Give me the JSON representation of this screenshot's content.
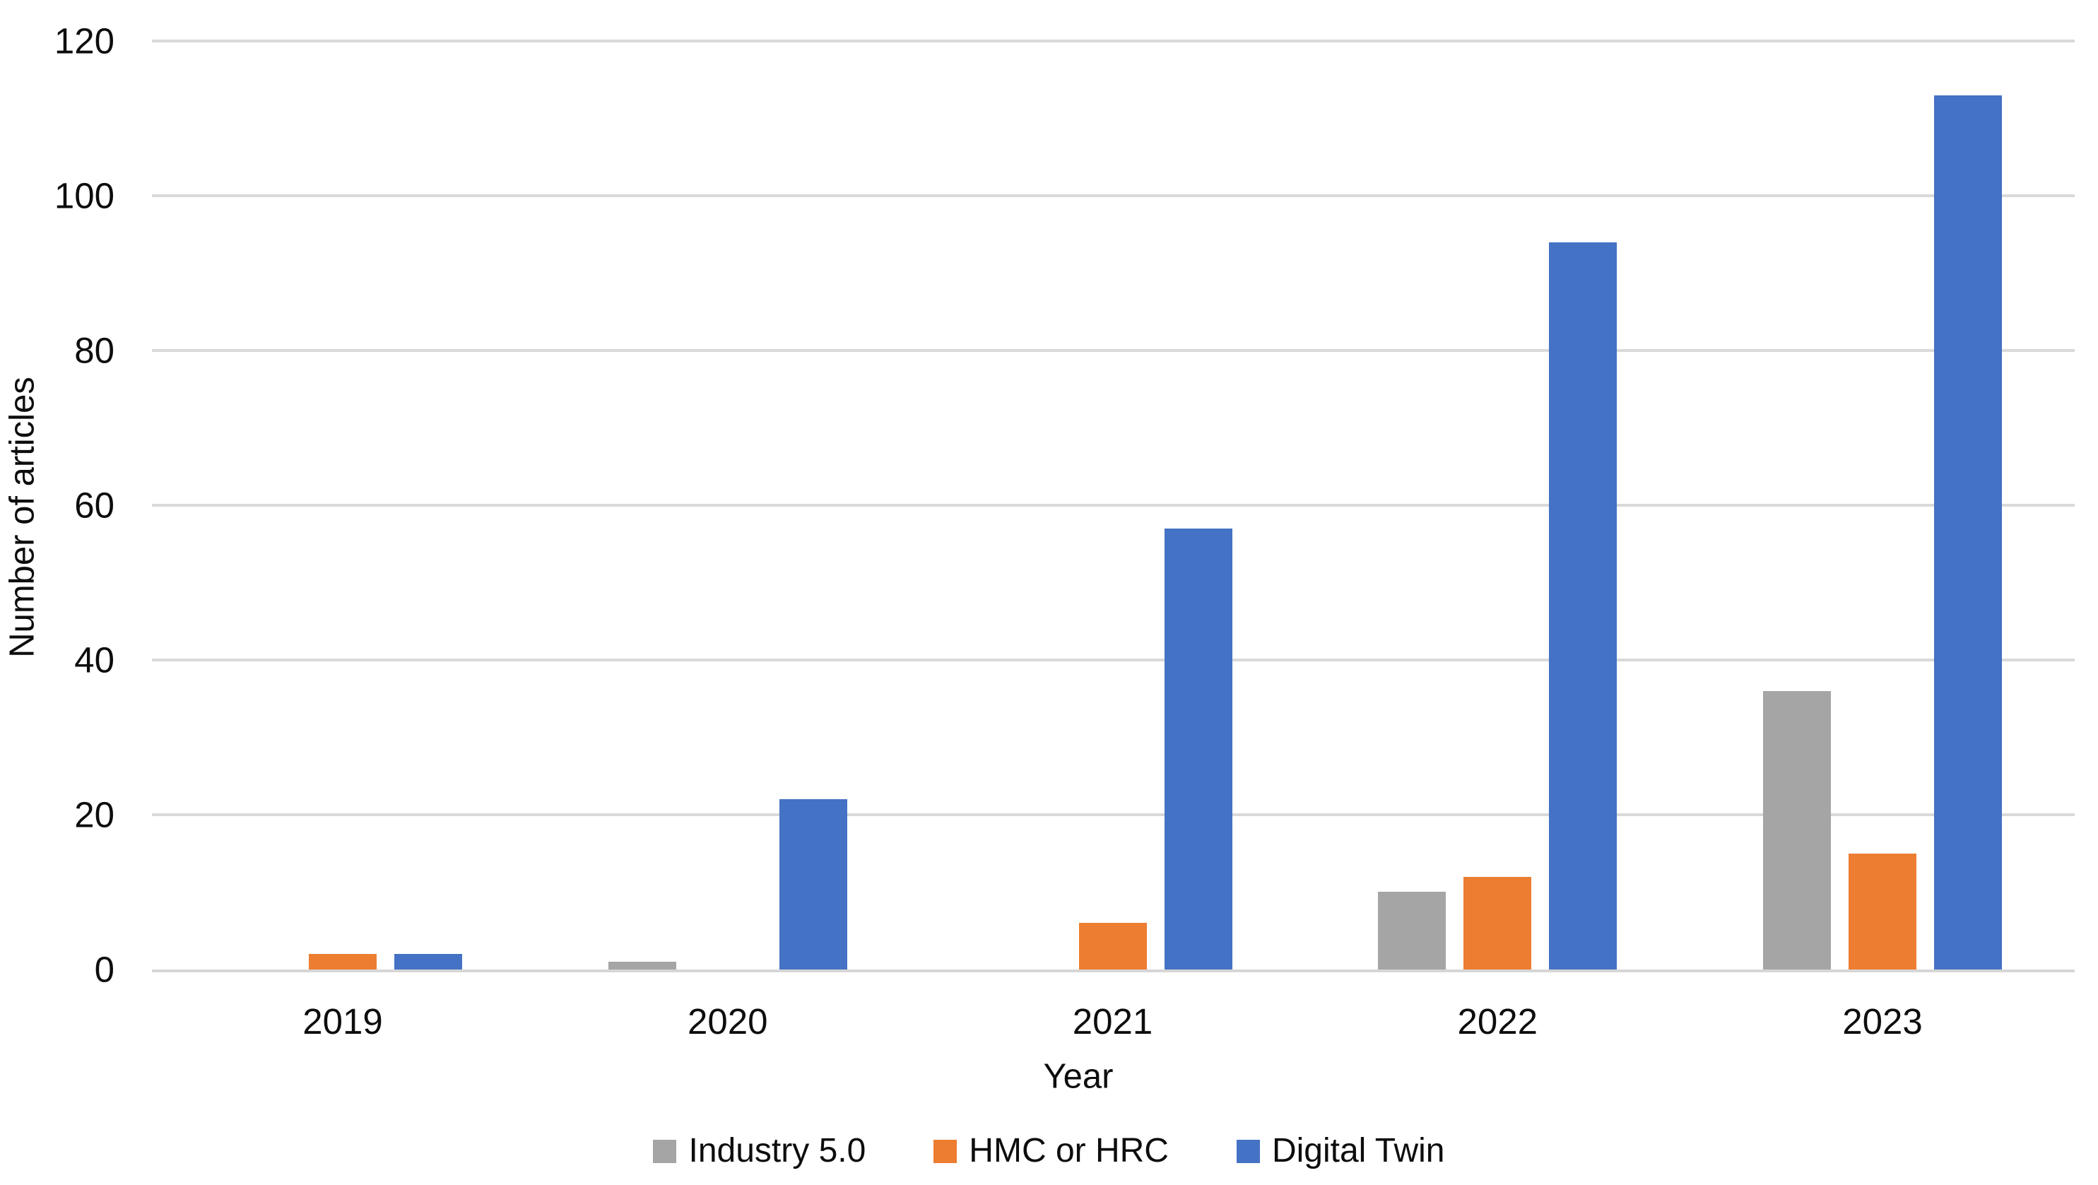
{
  "chart_data": {
    "type": "bar",
    "title": "",
    "categories": [
      "2019",
      "2020",
      "2021",
      "2022",
      "2023"
    ],
    "series": [
      {
        "name": "Industry 5.0",
        "color": "#A5A5A5",
        "values": [
          0,
          1,
          0,
          10,
          36
        ]
      },
      {
        "name": "HMC or HRC",
        "color": "#ED7D31",
        "values": [
          2,
          0,
          6,
          12,
          15
        ]
      },
      {
        "name": "Digital Twin",
        "color": "#4472C4",
        "values": [
          2,
          22,
          57,
          94,
          113
        ]
      }
    ],
    "xlabel": "Year",
    "ylabel": "Number of articles",
    "ylim": [
      0,
      120
    ],
    "ytick_step": 20,
    "ytick_labels": [
      "0",
      "20",
      "40",
      "60",
      "80",
      "100",
      "120"
    ],
    "grid": "horizontal",
    "grid_color": "#D9D9D9",
    "axis_line_color": "#D6D6D6",
    "text_color": "#0d0d0d",
    "background": "#FFFFFF",
    "legend_position": "bottom"
  }
}
